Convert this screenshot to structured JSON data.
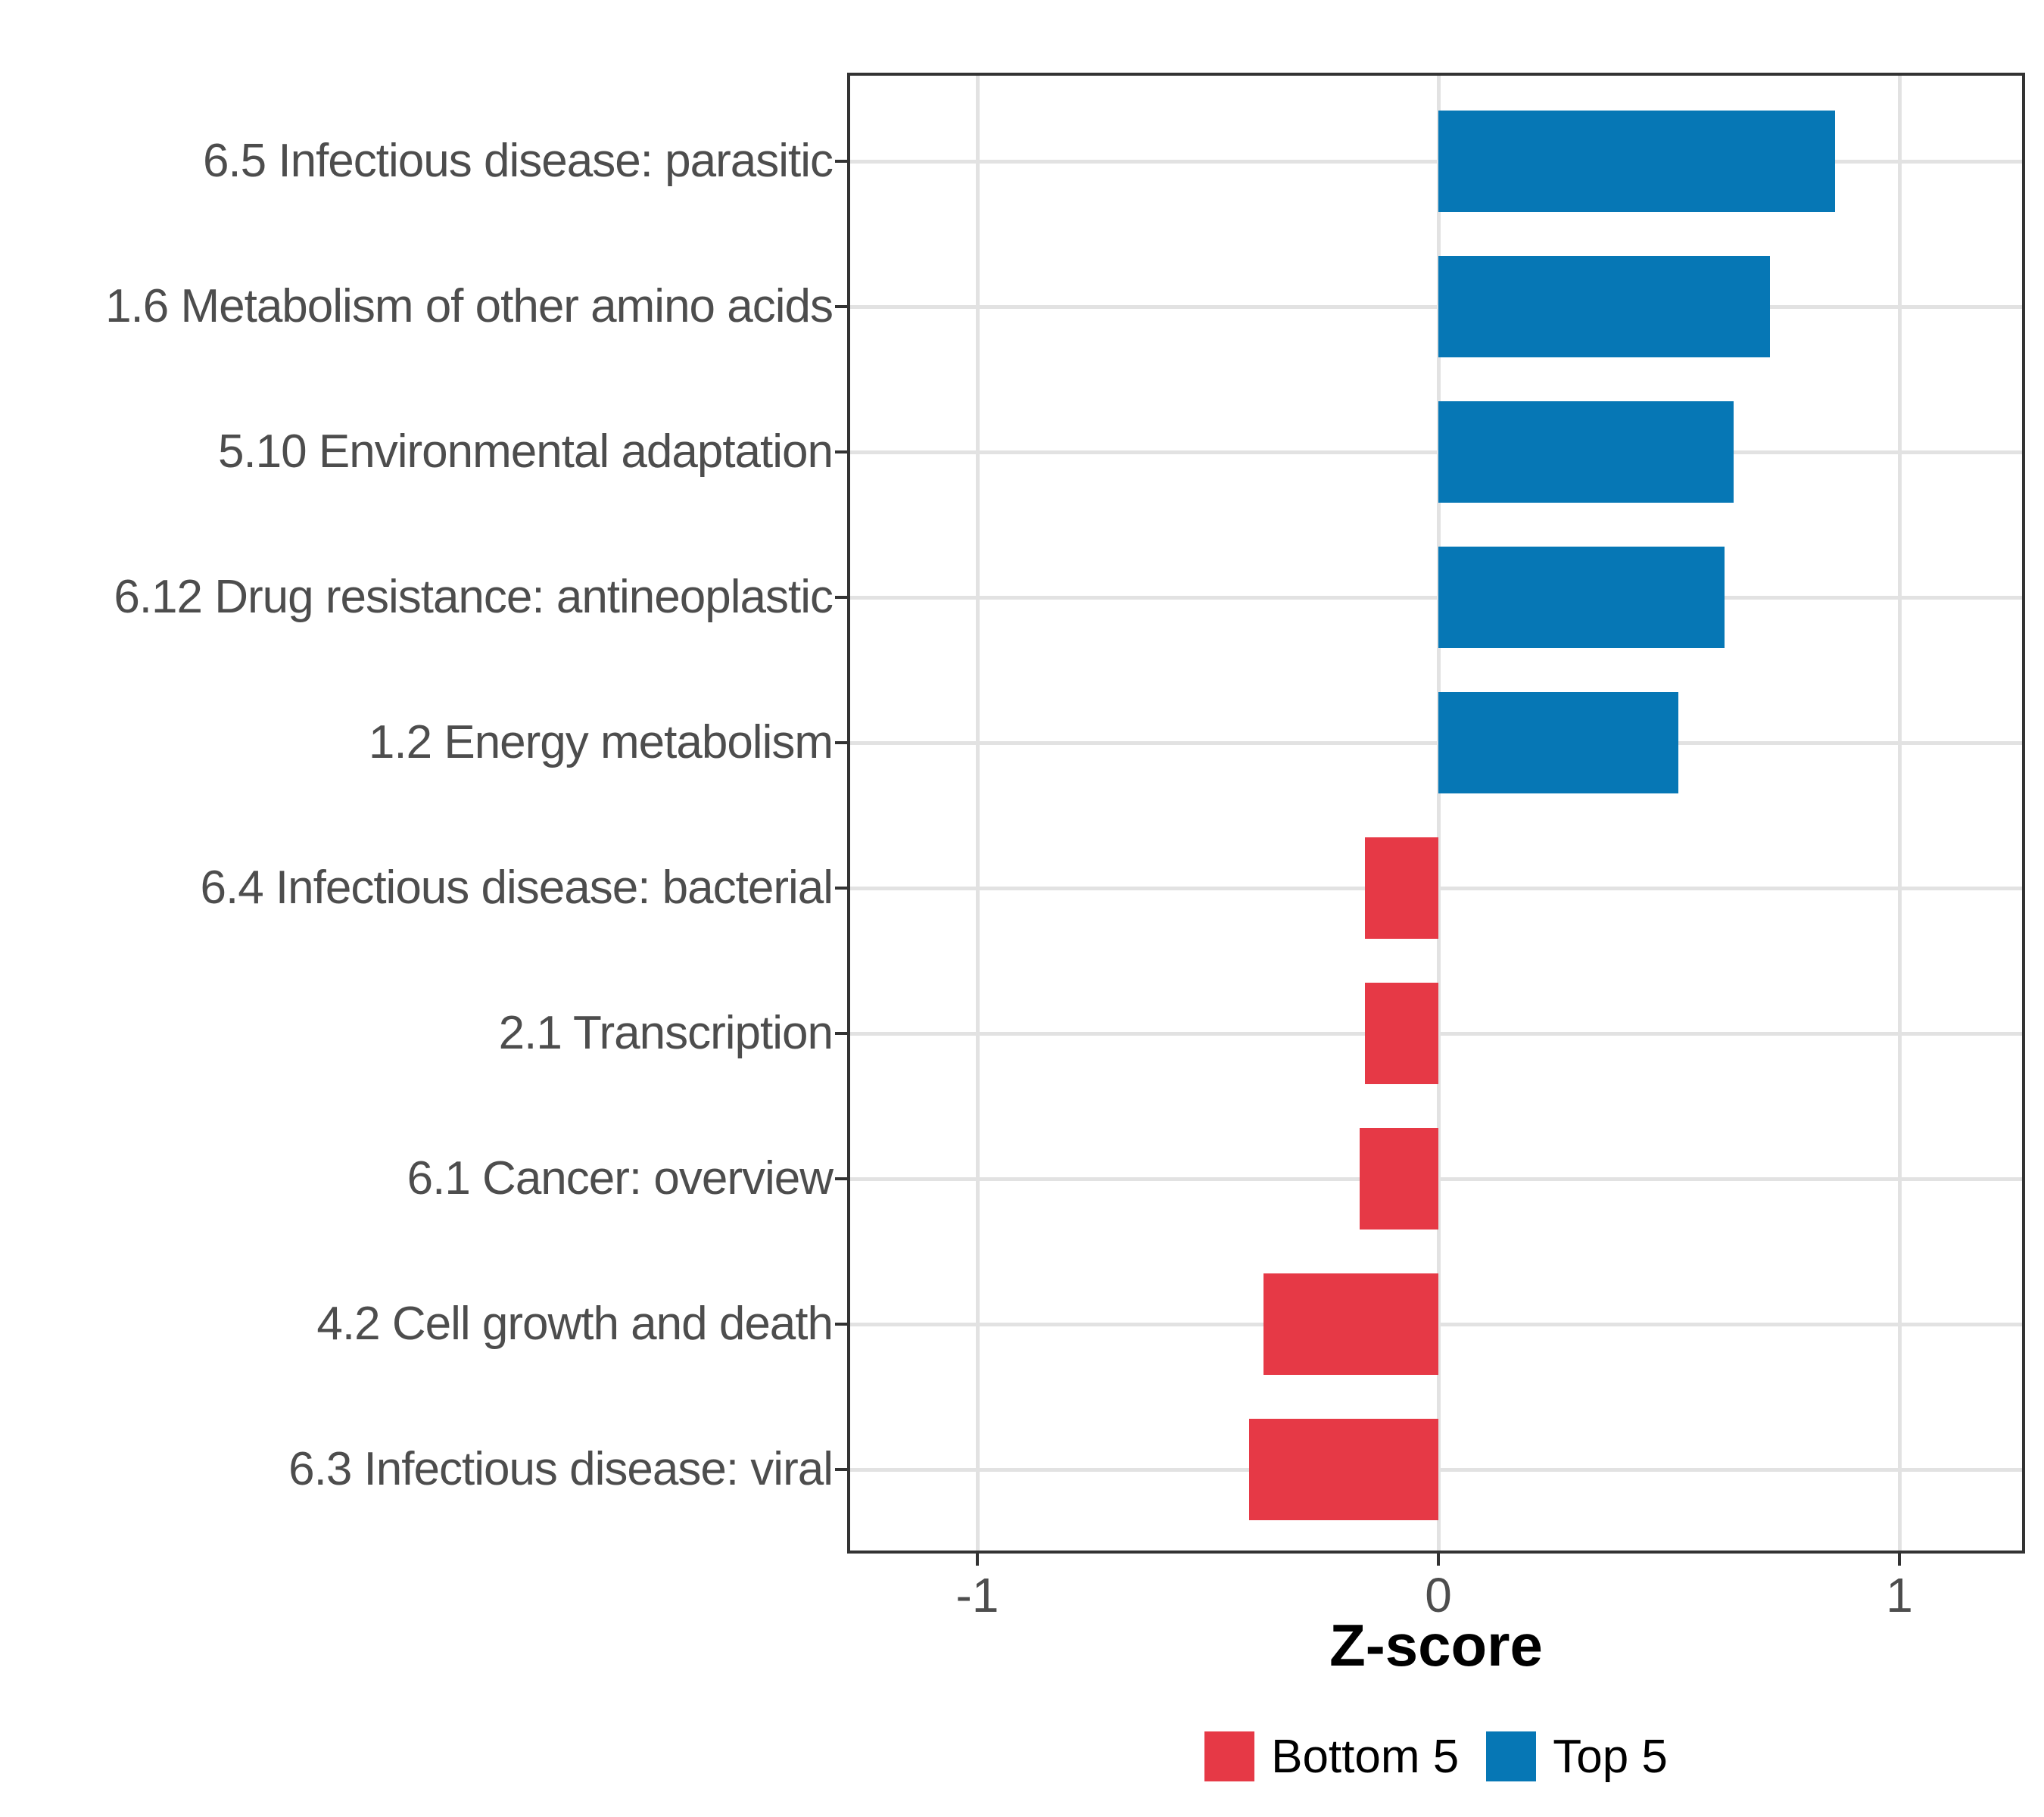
{
  "chart_data": {
    "type": "bar",
    "orientation": "horizontal",
    "title": "",
    "xlabel": "Z-score",
    "ylabel": "",
    "x_ticks": [
      -1,
      0,
      1
    ],
    "x_tick_labels": [
      "-1",
      "0",
      "1"
    ],
    "xlim": [
      -1.28,
      1.27
    ],
    "grid": "major",
    "legend_position": "bottom",
    "categories": [
      "6.5 Infectious disease: parasitic",
      "1.6 Metabolism of other amino acids",
      "5.10 Environmental adaptation",
      "6.12 Drug resistance: antineoplastic",
      "1.2 Energy metabolism",
      "6.4 Infectious disease: bacterial",
      "2.1 Transcription",
      "6.1 Cancer: overview",
      "4.2 Cell growth and death",
      "6.3 Infectious disease: viral"
    ],
    "values": [
      0.86,
      0.72,
      0.64,
      0.62,
      0.52,
      -0.16,
      -0.16,
      -0.17,
      -0.38,
      -0.41
    ],
    "groups": [
      "Top 5",
      "Top 5",
      "Top 5",
      "Top 5",
      "Top 5",
      "Bottom 5",
      "Bottom 5",
      "Bottom 5",
      "Bottom 5",
      "Bottom 5"
    ],
    "series": [
      {
        "name": "Top 5",
        "color": "#0677B5",
        "values": [
          0.86,
          0.72,
          0.64,
          0.62,
          0.52,
          null,
          null,
          null,
          null,
          null
        ]
      },
      {
        "name": "Bottom 5",
        "color": "#E63946",
        "values": [
          null,
          null,
          null,
          null,
          null,
          -0.16,
          -0.16,
          -0.17,
          -0.38,
          -0.41
        ]
      }
    ]
  },
  "legend": {
    "items": [
      {
        "label": "Bottom 5",
        "color": "#E63946"
      },
      {
        "label": "Top 5",
        "color": "#0677B5"
      }
    ]
  },
  "colors": {
    "top5": "#0677B5",
    "bottom5": "#E63946",
    "grid": "#E2E2E2",
    "axis_line": "#333333",
    "axis_text": "#4D4D4D",
    "title_text": "#000000",
    "background": "#FFFFFF"
  }
}
